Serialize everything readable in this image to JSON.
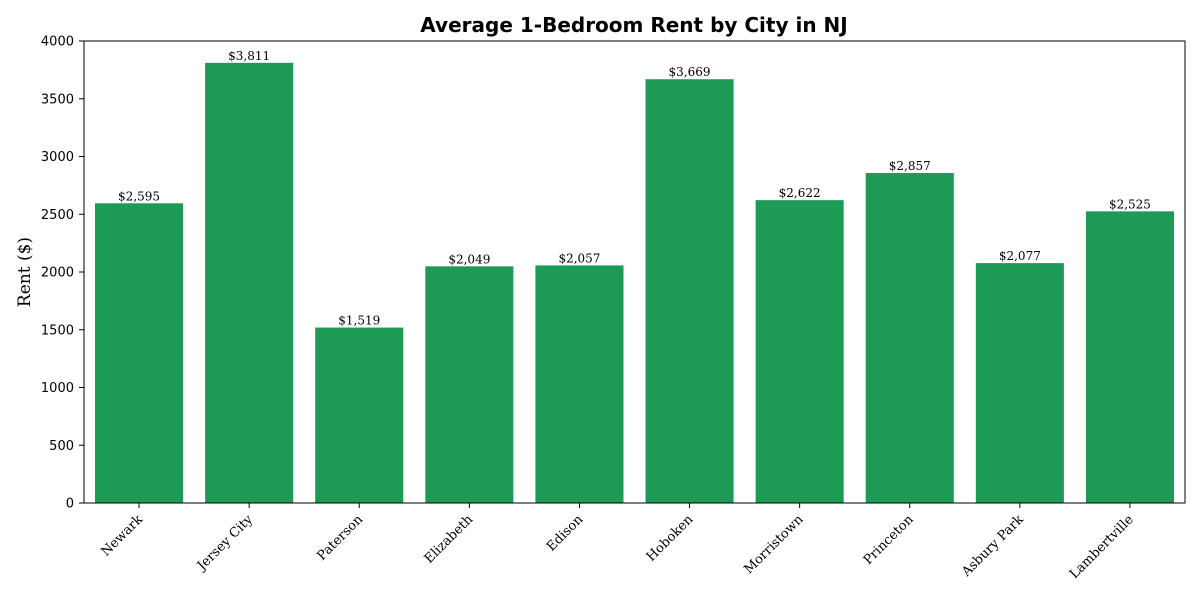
{
  "chart_data": {
    "type": "bar",
    "title": "Average 1-Bedroom Rent by City in NJ",
    "xlabel": "",
    "ylabel": "Rent ($)",
    "categories": [
      "Newark",
      "Jersey City",
      "Paterson",
      "Elizabeth",
      "Edison",
      "Hoboken",
      "Morristown",
      "Princeton",
      "Asbury Park",
      "Lambertville"
    ],
    "values": [
      2595,
      3811,
      1519,
      2049,
      2057,
      3669,
      2622,
      2857,
      2077,
      2525
    ],
    "data_labels": [
      "$2,595",
      "$3,811",
      "$1,519",
      "$2,049",
      "$2,057",
      "$3,669",
      "$2,622",
      "$2,857",
      "$2,077",
      "$2,525"
    ],
    "ylim": [
      0,
      4000
    ],
    "yticks": [
      0,
      500,
      1000,
      1500,
      2000,
      2500,
      3000,
      3500,
      4000
    ],
    "bar_color": "#1d9a56",
    "grid": false,
    "legend": "none"
  }
}
